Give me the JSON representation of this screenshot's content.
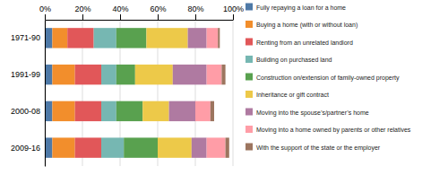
{
  "chart_data": {
    "type": "bar",
    "orientation": "horizontal",
    "stacked": true,
    "grid": true,
    "legend": "right",
    "categories": [
      "1971-90",
      "1991-99",
      "2000-08",
      "2009-16"
    ],
    "series": [
      {
        "name": "Fully repaying a loan for a home",
        "values": [
          4,
          4,
          4,
          4
        ]
      },
      {
        "name": "Buying a home (with or without loan)",
        "values": [
          8,
          12,
          12,
          12
        ]
      },
      {
        "name": "Renting from an unrelated landlord",
        "values": [
          14,
          14,
          14,
          14
        ]
      },
      {
        "name": "Building on purchased land",
        "values": [
          12,
          8,
          8,
          12
        ]
      },
      {
        "name": "Construction on/extension of family-owned property",
        "values": [
          16,
          10,
          14,
          18
        ]
      },
      {
        "name": "Inheritance or gift contract",
        "values": [
          22,
          20,
          14,
          18
        ]
      },
      {
        "name": "Moving into the spouse’s/partner’s home",
        "values": [
          10,
          18,
          14,
          8
        ]
      },
      {
        "name": "Moving into a home owned by parents or other relatives",
        "values": [
          6,
          8,
          8,
          10
        ]
      },
      {
        "name": "With the support of the state or the employer",
        "values": [
          1,
          2,
          2,
          2
        ]
      }
    ],
    "xlim": [
      0,
      100
    ],
    "xticks": [
      {
        "value": 0,
        "label": "0%"
      },
      {
        "value": 20,
        "label": "20%"
      },
      {
        "value": 40,
        "label": "40%"
      },
      {
        "value": 60,
        "label": "60%"
      },
      {
        "value": 80,
        "label": "80%"
      },
      {
        "value": 100,
        "label": "100%"
      }
    ]
  }
}
